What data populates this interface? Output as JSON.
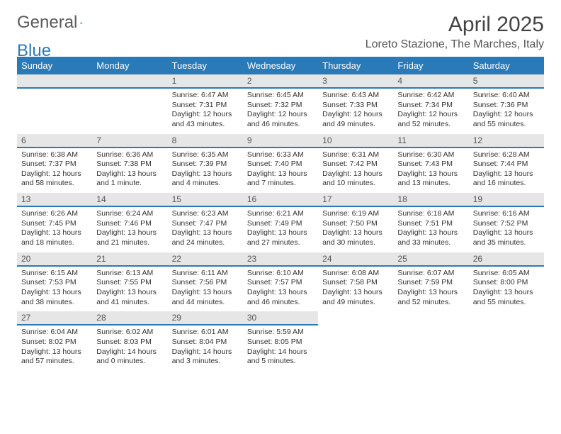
{
  "logo": {
    "text_main": "General",
    "text_accent": "Blue"
  },
  "header": {
    "month_title": "April 2025",
    "location": "Loreto Stazione, The Marches, Italy"
  },
  "colors": {
    "accent": "#2a7ab8",
    "header_bg": "#2a7ab8",
    "header_fg": "#ffffff",
    "daynum_bg": "#e6e6e6",
    "daynum_border": "#2a7ab8",
    "text": "#333333",
    "title": "#444444",
    "location": "#555555"
  },
  "calendar": {
    "type": "table",
    "columns": [
      "Sunday",
      "Monday",
      "Tuesday",
      "Wednesday",
      "Thursday",
      "Friday",
      "Saturday"
    ],
    "leading_blanks": 2,
    "days": [
      {
        "n": "1",
        "sunrise": "6:47 AM",
        "sunset": "7:31 PM",
        "daylight": "12 hours and 43 minutes."
      },
      {
        "n": "2",
        "sunrise": "6:45 AM",
        "sunset": "7:32 PM",
        "daylight": "12 hours and 46 minutes."
      },
      {
        "n": "3",
        "sunrise": "6:43 AM",
        "sunset": "7:33 PM",
        "daylight": "12 hours and 49 minutes."
      },
      {
        "n": "4",
        "sunrise": "6:42 AM",
        "sunset": "7:34 PM",
        "daylight": "12 hours and 52 minutes."
      },
      {
        "n": "5",
        "sunrise": "6:40 AM",
        "sunset": "7:36 PM",
        "daylight": "12 hours and 55 minutes."
      },
      {
        "n": "6",
        "sunrise": "6:38 AM",
        "sunset": "7:37 PM",
        "daylight": "12 hours and 58 minutes."
      },
      {
        "n": "7",
        "sunrise": "6:36 AM",
        "sunset": "7:38 PM",
        "daylight": "13 hours and 1 minute."
      },
      {
        "n": "8",
        "sunrise": "6:35 AM",
        "sunset": "7:39 PM",
        "daylight": "13 hours and 4 minutes."
      },
      {
        "n": "9",
        "sunrise": "6:33 AM",
        "sunset": "7:40 PM",
        "daylight": "13 hours and 7 minutes."
      },
      {
        "n": "10",
        "sunrise": "6:31 AM",
        "sunset": "7:42 PM",
        "daylight": "13 hours and 10 minutes."
      },
      {
        "n": "11",
        "sunrise": "6:30 AM",
        "sunset": "7:43 PM",
        "daylight": "13 hours and 13 minutes."
      },
      {
        "n": "12",
        "sunrise": "6:28 AM",
        "sunset": "7:44 PM",
        "daylight": "13 hours and 16 minutes."
      },
      {
        "n": "13",
        "sunrise": "6:26 AM",
        "sunset": "7:45 PM",
        "daylight": "13 hours and 18 minutes."
      },
      {
        "n": "14",
        "sunrise": "6:24 AM",
        "sunset": "7:46 PM",
        "daylight": "13 hours and 21 minutes."
      },
      {
        "n": "15",
        "sunrise": "6:23 AM",
        "sunset": "7:47 PM",
        "daylight": "13 hours and 24 minutes."
      },
      {
        "n": "16",
        "sunrise": "6:21 AM",
        "sunset": "7:49 PM",
        "daylight": "13 hours and 27 minutes."
      },
      {
        "n": "17",
        "sunrise": "6:19 AM",
        "sunset": "7:50 PM",
        "daylight": "13 hours and 30 minutes."
      },
      {
        "n": "18",
        "sunrise": "6:18 AM",
        "sunset": "7:51 PM",
        "daylight": "13 hours and 33 minutes."
      },
      {
        "n": "19",
        "sunrise": "6:16 AM",
        "sunset": "7:52 PM",
        "daylight": "13 hours and 35 minutes."
      },
      {
        "n": "20",
        "sunrise": "6:15 AM",
        "sunset": "7:53 PM",
        "daylight": "13 hours and 38 minutes."
      },
      {
        "n": "21",
        "sunrise": "6:13 AM",
        "sunset": "7:55 PM",
        "daylight": "13 hours and 41 minutes."
      },
      {
        "n": "22",
        "sunrise": "6:11 AM",
        "sunset": "7:56 PM",
        "daylight": "13 hours and 44 minutes."
      },
      {
        "n": "23",
        "sunrise": "6:10 AM",
        "sunset": "7:57 PM",
        "daylight": "13 hours and 46 minutes."
      },
      {
        "n": "24",
        "sunrise": "6:08 AM",
        "sunset": "7:58 PM",
        "daylight": "13 hours and 49 minutes."
      },
      {
        "n": "25",
        "sunrise": "6:07 AM",
        "sunset": "7:59 PM",
        "daylight": "13 hours and 52 minutes."
      },
      {
        "n": "26",
        "sunrise": "6:05 AM",
        "sunset": "8:00 PM",
        "daylight": "13 hours and 55 minutes."
      },
      {
        "n": "27",
        "sunrise": "6:04 AM",
        "sunset": "8:02 PM",
        "daylight": "13 hours and 57 minutes."
      },
      {
        "n": "28",
        "sunrise": "6:02 AM",
        "sunset": "8:03 PM",
        "daylight": "14 hours and 0 minutes."
      },
      {
        "n": "29",
        "sunrise": "6:01 AM",
        "sunset": "8:04 PM",
        "daylight": "14 hours and 3 minutes."
      },
      {
        "n": "30",
        "sunrise": "5:59 AM",
        "sunset": "8:05 PM",
        "daylight": "14 hours and 5 minutes."
      }
    ],
    "labels": {
      "sunrise": "Sunrise:",
      "sunset": "Sunset:",
      "daylight": "Daylight:"
    }
  }
}
